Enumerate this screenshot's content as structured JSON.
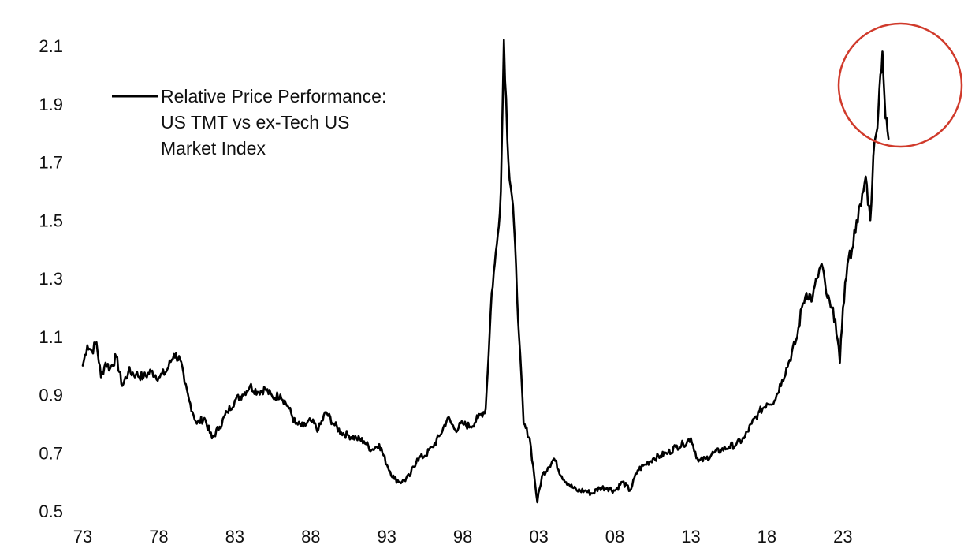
{
  "chart_data": {
    "type": "line",
    "title": "",
    "xlabel": "",
    "ylabel": "",
    "xlim": [
      1973,
      2026.3
    ],
    "ylim": [
      0.5,
      2.1
    ],
    "x_ticks": [
      1973,
      1978,
      1983,
      1988,
      1993,
      1998,
      2003,
      2008,
      2013,
      2018,
      2023
    ],
    "x_tick_labels": [
      "73",
      "78",
      "83",
      "88",
      "93",
      "98",
      "03",
      "08",
      "13",
      "18",
      "23"
    ],
    "y_ticks": [
      0.5,
      0.7,
      0.9,
      1.1,
      1.3,
      1.5,
      1.7,
      1.9,
      2.1
    ],
    "y_tick_labels": [
      "0.5",
      "0.7",
      "0.9",
      "1.1",
      "1.3",
      "1.5",
      "1.7",
      "1.9",
      "2.1"
    ],
    "grid": false,
    "legend_position": "top-left",
    "series": [
      {
        "name": "Relative Price Performance: US TMT vs ex-Tech US Market Index",
        "name_lines": [
          "Relative Price Performance:",
          "US TMT vs ex-Tech US",
          "Market Index"
        ],
        "color": "#000000",
        "x": [
          1973.0,
          1973.3,
          1973.6,
          1973.9,
          1974.2,
          1974.5,
          1974.8,
          1975.2,
          1975.6,
          1976.0,
          1976.5,
          1977.0,
          1977.5,
          1978.0,
          1978.5,
          1979.0,
          1979.4,
          1979.7,
          1980.0,
          1980.5,
          1981.0,
          1981.5,
          1982.0,
          1982.5,
          1983.0,
          1983.5,
          1984.0,
          1984.5,
          1985.0,
          1985.5,
          1986.0,
          1986.5,
          1987.0,
          1987.5,
          1988.0,
          1988.5,
          1989.0,
          1989.5,
          1990.0,
          1990.5,
          1991.0,
          1991.5,
          1992.0,
          1992.5,
          1993.0,
          1993.5,
          1994.0,
          1994.5,
          1995.0,
          1995.5,
          1996.0,
          1996.5,
          1997.0,
          1997.5,
          1998.0,
          1998.5,
          1999.0,
          1999.5,
          1999.9,
          2000.1,
          2000.3,
          2000.5,
          2000.7,
          2001.0,
          2001.3,
          2001.7,
          2002.0,
          2002.4,
          2002.7,
          2002.9,
          2003.2,
          2003.6,
          2004.0,
          2004.5,
          2005.0,
          2005.5,
          2006.0,
          2006.5,
          2007.0,
          2007.5,
          2008.0,
          2008.5,
          2009.0,
          2009.5,
          2010.0,
          2010.5,
          2011.0,
          2011.5,
          2012.0,
          2012.5,
          2013.0,
          2013.5,
          2014.0,
          2014.5,
          2015.0,
          2015.5,
          2016.0,
          2016.5,
          2017.0,
          2017.5,
          2018.0,
          2018.5,
          2019.0,
          2019.5,
          2020.0,
          2020.3,
          2020.6,
          2021.0,
          2021.3,
          2021.6,
          2021.9,
          2022.2,
          2022.5,
          2022.8,
          2023.0,
          2023.3,
          2023.6,
          2023.9,
          2024.2,
          2024.5,
          2024.8,
          2025.0,
          2025.2,
          2025.4,
          2025.6,
          2025.8,
          2026.0
        ],
        "y": [
          1.0,
          1.07,
          1.05,
          1.08,
          0.96,
          1.01,
          0.99,
          1.03,
          0.93,
          0.98,
          0.97,
          0.96,
          0.98,
          0.96,
          0.98,
          1.04,
          1.02,
          0.94,
          0.88,
          0.8,
          0.82,
          0.75,
          0.79,
          0.84,
          0.88,
          0.9,
          0.93,
          0.91,
          0.92,
          0.89,
          0.9,
          0.86,
          0.8,
          0.79,
          0.81,
          0.78,
          0.84,
          0.8,
          0.77,
          0.76,
          0.75,
          0.74,
          0.71,
          0.73,
          0.66,
          0.61,
          0.6,
          0.62,
          0.68,
          0.69,
          0.72,
          0.76,
          0.82,
          0.78,
          0.8,
          0.79,
          0.82,
          0.85,
          1.25,
          1.35,
          1.45,
          1.6,
          2.12,
          1.7,
          1.55,
          1.1,
          0.8,
          0.75,
          0.62,
          0.53,
          0.62,
          0.65,
          0.68,
          0.62,
          0.59,
          0.57,
          0.57,
          0.56,
          0.58,
          0.58,
          0.57,
          0.6,
          0.57,
          0.64,
          0.66,
          0.68,
          0.69,
          0.7,
          0.72,
          0.73,
          0.75,
          0.67,
          0.68,
          0.7,
          0.71,
          0.72,
          0.73,
          0.75,
          0.8,
          0.84,
          0.87,
          0.88,
          0.95,
          1.02,
          1.1,
          1.2,
          1.25,
          1.23,
          1.3,
          1.35,
          1.25,
          1.2,
          1.16,
          1.01,
          1.2,
          1.35,
          1.4,
          1.5,
          1.55,
          1.65,
          1.5,
          1.72,
          1.8,
          1.95,
          2.08,
          1.85,
          1.78
        ]
      }
    ]
  },
  "annotation": {
    "shape": "circle",
    "color": "#d03a2b"
  }
}
